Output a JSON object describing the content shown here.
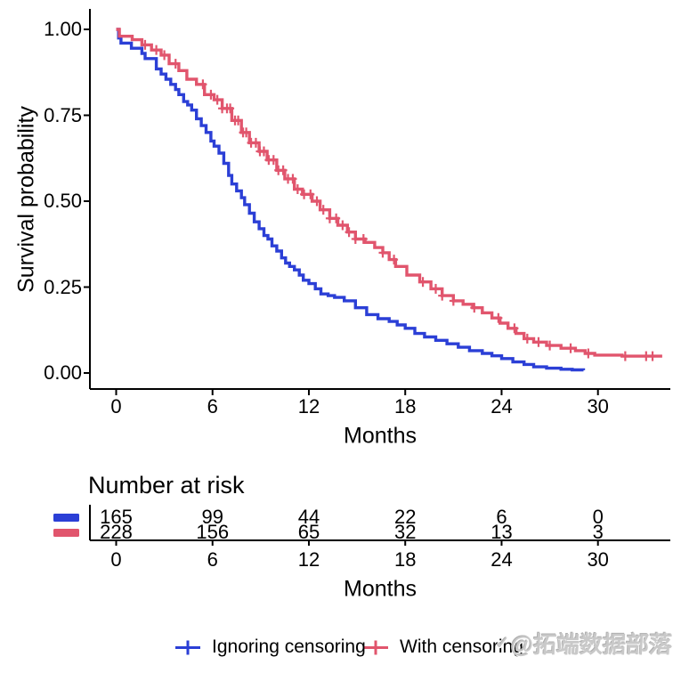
{
  "colors": {
    "ignoring": "#2B3FD6",
    "with": "#E1556D",
    "axis": "#000000",
    "text": "#000000",
    "watermark": "#C9C9C9"
  },
  "chart_data": {
    "type": "line",
    "subtype": "kaplan-meier-survival-step",
    "title": "",
    "xlabel": "Months",
    "ylabel": "Survival probability",
    "xlim": [
      0,
      34.5
    ],
    "ylim": [
      0,
      1
    ],
    "grid": false,
    "legend_position": "bottom",
    "xticks": [
      0,
      6,
      12,
      18,
      24,
      30
    ],
    "xtick_labels": [
      "0",
      "6",
      "12",
      "18",
      "24",
      "30"
    ],
    "yticks": [
      1.0,
      0.75,
      0.5,
      0.25,
      0.0
    ],
    "ytick_labels": [
      "1.00",
      "0.75",
      "0.50",
      "0.25",
      "0.00"
    ],
    "series": [
      {
        "name": "Ignoring censoring",
        "color_key": "ignoring",
        "points": [
          [
            0,
            1
          ],
          [
            0.15,
            0.975
          ],
          [
            0.3,
            0.96
          ],
          [
            0.8,
            0.96
          ],
          [
            0.95,
            0.945
          ],
          [
            1.4,
            0.945
          ],
          [
            1.6,
            0.93
          ],
          [
            1.8,
            0.915
          ],
          [
            2.3,
            0.915
          ],
          [
            2.5,
            0.885
          ],
          [
            2.8,
            0.87
          ],
          [
            3.1,
            0.855
          ],
          [
            3.4,
            0.84
          ],
          [
            3.7,
            0.825
          ],
          [
            3.9,
            0.81
          ],
          [
            4.2,
            0.79
          ],
          [
            4.45,
            0.78
          ],
          [
            4.7,
            0.765
          ],
          [
            5.0,
            0.74
          ],
          [
            5.3,
            0.72
          ],
          [
            5.6,
            0.7
          ],
          [
            5.9,
            0.675
          ],
          [
            6.1,
            0.66
          ],
          [
            6.4,
            0.64
          ],
          [
            6.7,
            0.61
          ],
          [
            7.0,
            0.575
          ],
          [
            7.2,
            0.55
          ],
          [
            7.5,
            0.53
          ],
          [
            7.8,
            0.51
          ],
          [
            8.0,
            0.49
          ],
          [
            8.3,
            0.465
          ],
          [
            8.6,
            0.44
          ],
          [
            8.9,
            0.42
          ],
          [
            9.2,
            0.4
          ],
          [
            9.45,
            0.39
          ],
          [
            9.7,
            0.37
          ],
          [
            10.0,
            0.355
          ],
          [
            10.3,
            0.335
          ],
          [
            10.55,
            0.32
          ],
          [
            10.8,
            0.31
          ],
          [
            11.1,
            0.3
          ],
          [
            11.4,
            0.285
          ],
          [
            11.65,
            0.27
          ],
          [
            12.0,
            0.26
          ],
          [
            12.4,
            0.245
          ],
          [
            12.75,
            0.23
          ],
          [
            13.2,
            0.225
          ],
          [
            13.6,
            0.22
          ],
          [
            14.2,
            0.21
          ],
          [
            14.9,
            0.19
          ],
          [
            15.6,
            0.17
          ],
          [
            16.3,
            0.158
          ],
          [
            17.0,
            0.15
          ],
          [
            17.5,
            0.14
          ],
          [
            18.0,
            0.13
          ],
          [
            18.6,
            0.115
          ],
          [
            19.2,
            0.105
          ],
          [
            19.9,
            0.095
          ],
          [
            20.6,
            0.085
          ],
          [
            21.3,
            0.075
          ],
          [
            22.0,
            0.065
          ],
          [
            22.8,
            0.057
          ],
          [
            23.4,
            0.05
          ],
          [
            24.0,
            0.042
          ],
          [
            24.7,
            0.032
          ],
          [
            25.4,
            0.025
          ],
          [
            26.0,
            0.018
          ],
          [
            26.8,
            0.014
          ],
          [
            27.7,
            0.011
          ],
          [
            28.4,
            0.009
          ],
          [
            29.1,
            0.008
          ]
        ],
        "censor_marks": []
      },
      {
        "name": "With censoring",
        "color_key": "with",
        "points": [
          [
            0,
            1
          ],
          [
            0.2,
            0.98
          ],
          [
            1.0,
            0.97
          ],
          [
            1.6,
            0.955
          ],
          [
            2.2,
            0.94
          ],
          [
            2.8,
            0.925
          ],
          [
            3.3,
            0.9
          ],
          [
            3.9,
            0.88
          ],
          [
            4.4,
            0.855
          ],
          [
            5.0,
            0.84
          ],
          [
            5.5,
            0.81
          ],
          [
            6.1,
            0.795
          ],
          [
            6.6,
            0.77
          ],
          [
            7.2,
            0.735
          ],
          [
            7.8,
            0.7
          ],
          [
            8.3,
            0.67
          ],
          [
            8.9,
            0.645
          ],
          [
            9.4,
            0.62
          ],
          [
            10.0,
            0.59
          ],
          [
            10.5,
            0.565
          ],
          [
            11.1,
            0.535
          ],
          [
            11.6,
            0.52
          ],
          [
            12.2,
            0.5
          ],
          [
            12.7,
            0.475
          ],
          [
            13.3,
            0.45
          ],
          [
            13.8,
            0.43
          ],
          [
            14.4,
            0.41
          ],
          [
            14.9,
            0.39
          ],
          [
            15.5,
            0.38
          ],
          [
            16.1,
            0.365
          ],
          [
            16.6,
            0.35
          ],
          [
            17.0,
            0.33
          ],
          [
            17.4,
            0.31
          ],
          [
            18.1,
            0.285
          ],
          [
            18.9,
            0.265
          ],
          [
            19.6,
            0.245
          ],
          [
            20.3,
            0.225
          ],
          [
            21.0,
            0.21
          ],
          [
            21.6,
            0.2
          ],
          [
            22.2,
            0.19
          ],
          [
            22.8,
            0.175
          ],
          [
            23.4,
            0.16
          ],
          [
            23.9,
            0.145
          ],
          [
            24.4,
            0.13
          ],
          [
            24.9,
            0.115
          ],
          [
            25.4,
            0.1
          ],
          [
            26.0,
            0.09
          ],
          [
            26.8,
            0.08
          ],
          [
            27.7,
            0.072
          ],
          [
            28.6,
            0.065
          ],
          [
            29.2,
            0.057
          ],
          [
            29.8,
            0.052
          ],
          [
            31.5,
            0.049
          ],
          [
            34.0,
            0.049
          ]
        ],
        "censor_marks": [
          1.8,
          2.5,
          3.0,
          3.7,
          5.4,
          5.9,
          6.3,
          6.6,
          6.9,
          7.1,
          7.4,
          7.6,
          7.9,
          8.1,
          8.4,
          8.7,
          8.95,
          9.2,
          9.5,
          9.8,
          10.1,
          10.4,
          10.7,
          11.0,
          11.3,
          11.7,
          12.1,
          12.5,
          12.9,
          13.3,
          13.7,
          14.1,
          14.5,
          14.9,
          15.4,
          16.6,
          17.3,
          19.1,
          19.9,
          20.3,
          21.0,
          22.3,
          23.8,
          24.8,
          25.6,
          26.3,
          27.0,
          28.3,
          29.4,
          31.7,
          33.0,
          33.4
        ]
      }
    ]
  },
  "risk_table": {
    "title": "Number at risk",
    "xlabel": "Months",
    "xticks": [
      0,
      6,
      12,
      18,
      24,
      30
    ],
    "xtick_labels": [
      "0",
      "6",
      "12",
      "18",
      "24",
      "30"
    ],
    "rows": [
      {
        "name": "Ignoring censoring",
        "color_key": "ignoring",
        "values": [
          "165",
          "99",
          "44",
          "22",
          "6",
          "0"
        ]
      },
      {
        "name": "With censoring",
        "color_key": "with",
        "values": [
          "228",
          "156",
          "65",
          "32",
          "13",
          "3"
        ]
      }
    ]
  },
  "legend": {
    "items": [
      {
        "label": "Ignoring censoring",
        "color_key": "ignoring"
      },
      {
        "label": "With censoring",
        "color_key": "with"
      }
    ]
  },
  "watermark": {
    "prefix": "✓",
    "text": "@拓端数据部落"
  }
}
